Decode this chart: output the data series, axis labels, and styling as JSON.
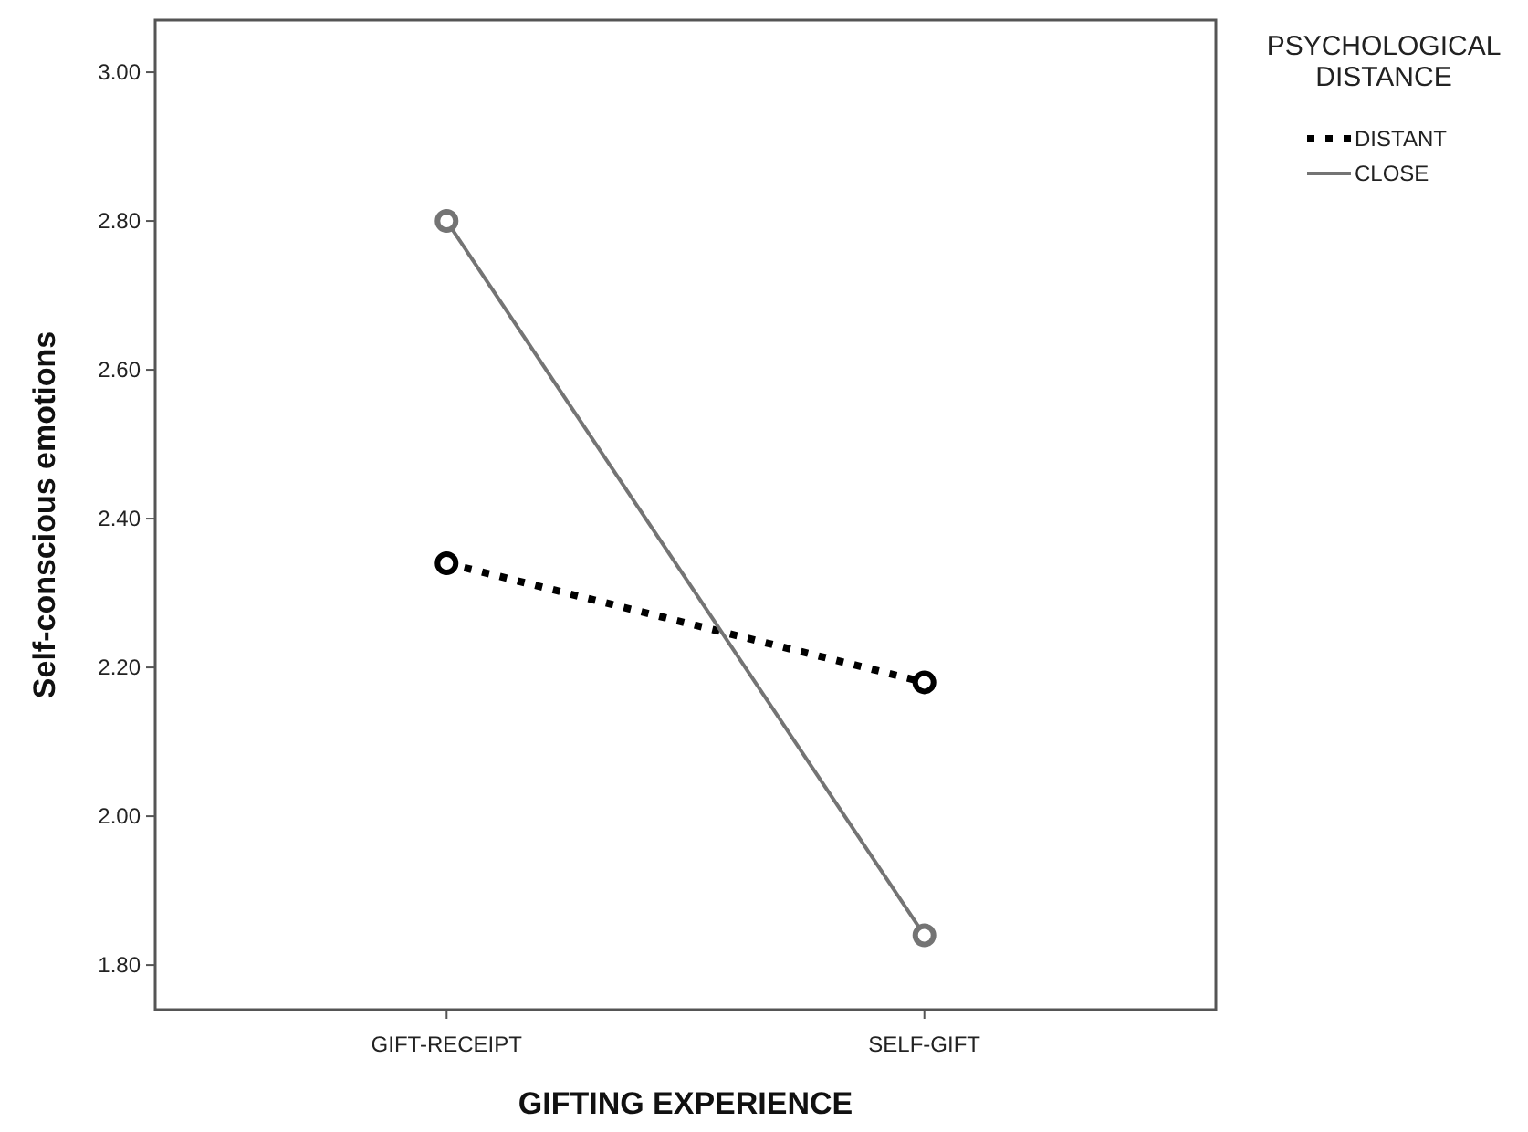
{
  "chart_data": {
    "type": "line",
    "xlabel": "GIFTING EXPERIENCE",
    "ylabel": "Self-conscious emotions",
    "legend_title": "PSYCHOLOGICAL DISTANCE",
    "categories": [
      "GIFT-RECEIPT",
      "SELF-GIFT"
    ],
    "series": [
      {
        "name": "DISTANT",
        "color": "#000000",
        "values": [
          2.34,
          2.18
        ],
        "line_style": "dotted"
      },
      {
        "name": "CLOSE",
        "color": "#747474",
        "values": [
          2.8,
          1.84
        ],
        "line_style": "solid"
      }
    ],
    "ylim": [
      1.74,
      3.07
    ],
    "yticks": [
      {
        "value": 1.8,
        "label": "1.80"
      },
      {
        "value": 2.0,
        "label": "2.00"
      },
      {
        "value": 2.2,
        "label": "2.20"
      },
      {
        "value": 2.4,
        "label": "2.40"
      },
      {
        "value": 2.6,
        "label": "2.60"
      },
      {
        "value": 2.8,
        "label": "2.80"
      },
      {
        "value": 3.0,
        "label": "3.00"
      }
    ],
    "grid": false,
    "legend": "right",
    "marker": "circle"
  }
}
